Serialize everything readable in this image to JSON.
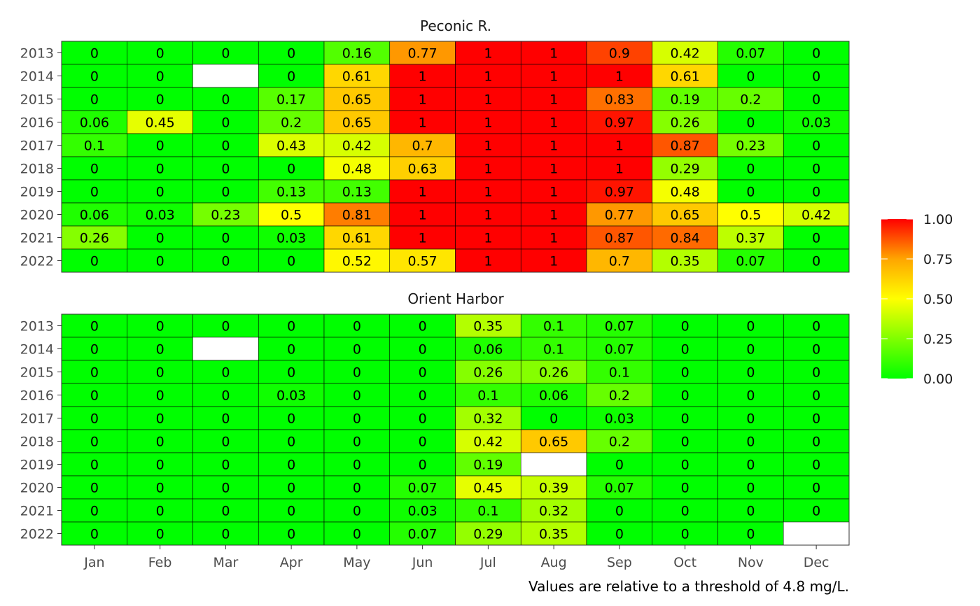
{
  "chart_data": {
    "type": "heatmap",
    "caption": "Values are relative to a threshold of 4.8 mg/L.",
    "x_categories": [
      "Jan",
      "Feb",
      "Mar",
      "Apr",
      "May",
      "Jun",
      "Jul",
      "Aug",
      "Sep",
      "Oct",
      "Nov",
      "Dec"
    ],
    "y_categories": [
      "2013",
      "2014",
      "2015",
      "2016",
      "2017",
      "2018",
      "2019",
      "2020",
      "2021",
      "2022"
    ],
    "color_scale": {
      "min": 0,
      "max": 1,
      "stops": [
        {
          "value": 0.0,
          "color": "#00ff00"
        },
        {
          "value": 0.5,
          "color": "#ffff00"
        },
        {
          "value": 0.75,
          "color": "#ffa500"
        },
        {
          "value": 1.0,
          "color": "#ff0000"
        }
      ],
      "ticks": [
        "0.00",
        "0.25",
        "0.50",
        "0.75",
        "1.00"
      ],
      "missing_color": "#ffffff"
    },
    "facets": [
      {
        "title": "Peconic R.",
        "values": [
          [
            0,
            0,
            0,
            0,
            0.16,
            0.77,
            1,
            1,
            0.9,
            0.42,
            0.07,
            0
          ],
          [
            0,
            0,
            null,
            0,
            0.61,
            1,
            1,
            1,
            1,
            0.61,
            0,
            0
          ],
          [
            0,
            0,
            0,
            0.17,
            0.65,
            1,
            1,
            1,
            0.83,
            0.19,
            0.2,
            0
          ],
          [
            0.06,
            0.45,
            0,
            0.2,
            0.65,
            1,
            1,
            1,
            0.97,
            0.26,
            0,
            0.03
          ],
          [
            0.1,
            0,
            0,
            0.43,
            0.42,
            0.7,
            1,
            1,
            1,
            0.87,
            0.23,
            0
          ],
          [
            0,
            0,
            0,
            0,
            0.48,
            0.63,
            1,
            1,
            1,
            0.29,
            0,
            0
          ],
          [
            0,
            0,
            0,
            0.13,
            0.13,
            1,
            1,
            1,
            0.97,
            0.48,
            0,
            0
          ],
          [
            0.06,
            0.03,
            0.23,
            0.5,
            0.81,
            1,
            1,
            1,
            0.77,
            0.65,
            0.5,
            0.42
          ],
          [
            0.26,
            0,
            0,
            0.03,
            0.61,
            1,
            1,
            1,
            0.87,
            0.84,
            0.37,
            0
          ],
          [
            0,
            0,
            0,
            0,
            0.52,
            0.57,
            1,
            1,
            0.7,
            0.35,
            0.07,
            0
          ]
        ]
      },
      {
        "title": "Orient Harbor",
        "values": [
          [
            0,
            0,
            0,
            0,
            0,
            0,
            0.35,
            0.1,
            0.07,
            0,
            0,
            0
          ],
          [
            0,
            0,
            null,
            0,
            0,
            0,
            0.06,
            0.1,
            0.07,
            0,
            0,
            0
          ],
          [
            0,
            0,
            0,
            0,
            0,
            0,
            0.26,
            0.26,
            0.1,
            0,
            0,
            0
          ],
          [
            0,
            0,
            0,
            0.03,
            0,
            0,
            0.1,
            0.06,
            0.2,
            0,
            0,
            0
          ],
          [
            0,
            0,
            0,
            0,
            0,
            0,
            0.32,
            0,
            0.03,
            0,
            0,
            0
          ],
          [
            0,
            0,
            0,
            0,
            0,
            0,
            0.42,
            0.65,
            0.2,
            0,
            0,
            0
          ],
          [
            0,
            0,
            0,
            0,
            0,
            0,
            0.19,
            null,
            0,
            0,
            0,
            0
          ],
          [
            0,
            0,
            0,
            0,
            0,
            0.07,
            0.45,
            0.39,
            0.07,
            0,
            0,
            0
          ],
          [
            0,
            0,
            0,
            0,
            0,
            0.03,
            0.1,
            0.32,
            0,
            0,
            0,
            0
          ],
          [
            0,
            0,
            0,
            0,
            0,
            0.07,
            0.29,
            0.35,
            0,
            0,
            0,
            null
          ]
        ]
      }
    ]
  }
}
